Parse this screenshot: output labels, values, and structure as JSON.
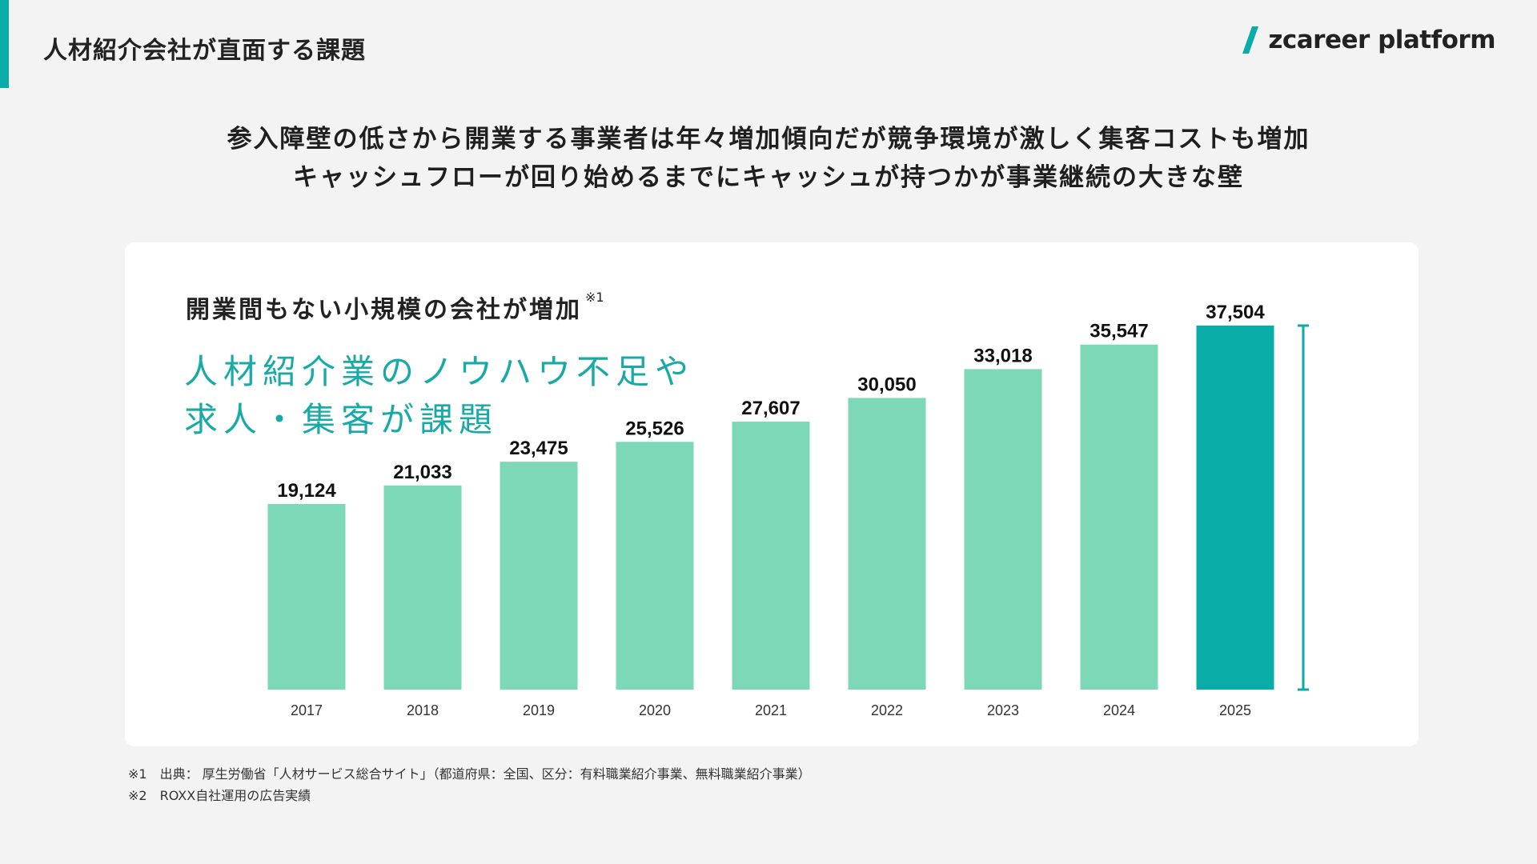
{
  "header": {
    "title": "人材紹介会社が直面する課題",
    "logo_text": "zcareer platform"
  },
  "headline": {
    "line1": "参入障壁の低さから開業する事業者は年々増加傾向だが競争環境が激しく集客コストも増加",
    "line2": "キャッシュフローが回り始めるまでにキャッシュが持つかが事業継続の大きな壁"
  },
  "card": {
    "heading": "開業間もない小規模の会社が増加",
    "heading_note": "※1",
    "message_line1": "人材紹介業のノウハウ不足や",
    "message_line2": "求人・集客が課題"
  },
  "footnotes": {
    "note1": "※1　出典： 厚生労働省「人材サービス総合サイト」（都道府県：全国、区分：有料職業紹介事業、無料職業紹介事業）",
    "note2": "※2　ROXX自社運用の広告実績"
  },
  "colors": {
    "accent": "#0aaca7",
    "bar": "#7dd8b8",
    "bar_highlight": "#0aaca7",
    "message_text": "#18aaa6"
  },
  "chart_data": {
    "type": "bar",
    "categories": [
      "2017",
      "2018",
      "2019",
      "2020",
      "2021",
      "2022",
      "2023",
      "2024",
      "2025"
    ],
    "values": [
      19124,
      21033,
      23475,
      25526,
      27607,
      30050,
      33018,
      35547,
      37504
    ],
    "value_labels": [
      "19,124",
      "21,033",
      "23,475",
      "25,526",
      "27,607",
      "30,050",
      "33,018",
      "35,547",
      "37,504"
    ],
    "highlight_category": "2025",
    "title": "開業間もない小規模の会社が増加",
    "xlabel": "",
    "ylabel": "",
    "grid": false,
    "legend": "none"
  }
}
